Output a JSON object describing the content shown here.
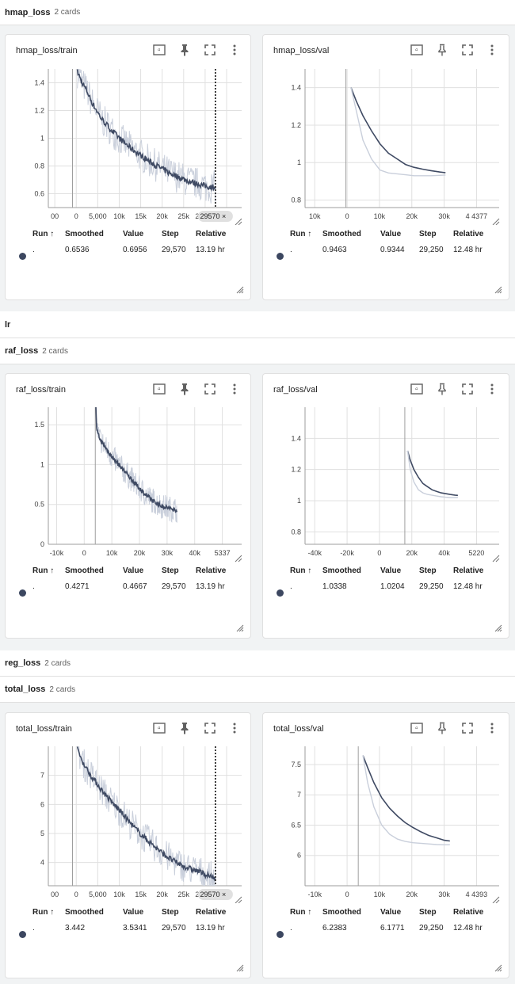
{
  "colors": {
    "smoothed": "#3f4a63",
    "raw": "#c9cfdb",
    "grid": "#e0e0e0",
    "axis": "#9e9e9e",
    "dot": "#3c4760"
  },
  "table_headers": {
    "run": "Run ↑",
    "smoothed": "Smoothed",
    "value": "Value",
    "step": "Step",
    "relative": "Relative"
  },
  "groups": [
    {
      "name": "hmap_loss",
      "count": "2 cards"
    },
    {
      "name": "lr",
      "count": ""
    },
    {
      "name": "raf_loss",
      "count": "2 cards"
    },
    {
      "name": "reg_loss",
      "count": "2 cards"
    },
    {
      "name": "total_loss",
      "count": "2 cards"
    }
  ],
  "cards": [
    {
      "title": "hmap_loss/train",
      "row": {
        "run": ".",
        "smoothed": "0.6536",
        "value": "0.6956",
        "step": "29,570",
        "relative": "13.19 hr"
      },
      "cursor_label": "29570",
      "chart_data": {
        "type": "line",
        "title": "hmap_loss/train",
        "xlabel": "",
        "ylabel": "",
        "xlim": [
          -5000,
          35000
        ],
        "ylim": [
          0.5,
          1.5
        ],
        "x_ticks": [
          "00",
          "0",
          "5,000",
          "10k",
          "15k",
          "20k",
          "25k",
          "29570",
          "3"
        ],
        "y_ticks": [
          0.6,
          0.8,
          1,
          1.2,
          1.4
        ],
        "y_tick_labels": [
          "0.6",
          "0.8",
          "1",
          "1.2",
          "1.4"
        ],
        "cursor_x": 29570,
        "raw_noise": 0.12,
        "series": [
          {
            "x": [
              1000,
              2000,
              3000,
              4000,
              5000,
              6000,
              8000,
              10000,
              12000,
              14000,
              16000,
              18000,
              20000,
              22000,
              24000,
              26000,
              28000,
              29570
            ],
            "y": [
              1.48,
              1.4,
              1.34,
              1.26,
              1.2,
              1.14,
              1.06,
              0.99,
              0.93,
              0.88,
              0.83,
              0.79,
              0.75,
              0.72,
              0.69,
              0.67,
              0.65,
              0.65
            ]
          }
        ]
      }
    },
    {
      "title": "hmap_loss/val",
      "row": {
        "run": ".",
        "smoothed": "0.9463",
        "value": "0.9344",
        "step": "29,250",
        "relative": "12.48 hr"
      },
      "cursor_label": "",
      "chart_data": {
        "type": "line",
        "title": "hmap_loss/val",
        "xlabel": "",
        "ylabel": "",
        "xlim": [
          -12000,
          45000
        ],
        "ylim": [
          0.76,
          1.5
        ],
        "x_ticks": [
          "10k",
          "0",
          "10k",
          "20k",
          "30k",
          "4 4377"
        ],
        "y_ticks": [
          0.8,
          1,
          1.2,
          1.4
        ],
        "y_tick_labels": [
          "0.8",
          "1",
          "1.2",
          "1.4"
        ],
        "series": [
          {
            "x": [
              1500,
              3000,
              5000,
              7500,
              10000,
              12500,
              15000,
              17500,
              20000,
              22500,
              25000,
              27500,
              29250
            ],
            "y": [
              1.4,
              1.33,
              1.25,
              1.17,
              1.1,
              1.05,
              1.02,
              0.99,
              0.975,
              0.965,
              0.957,
              0.95,
              0.946
            ]
          },
          {
            "x": [
              1500,
              3000,
              5000,
              7500,
              10000,
              12500,
              15000,
              17500,
              20000,
              22500,
              25000,
              27500,
              29250
            ],
            "y": [
              1.4,
              1.28,
              1.12,
              1.02,
              0.96,
              0.945,
              0.94,
              0.935,
              0.93,
              0.93,
              0.93,
              0.932,
              0.934
            ]
          }
        ]
      }
    },
    {
      "title": "raf_loss/train",
      "row": {
        "run": ".",
        "smoothed": "0.4271",
        "value": "0.4667",
        "step": "29,570",
        "relative": "13.19 hr"
      },
      "cursor_label": "",
      "chart_data": {
        "type": "line",
        "title": "raf_loss/train",
        "xlabel": "",
        "ylabel": "",
        "xlim": [
          -17000,
          53000
        ],
        "ylim": [
          0,
          1.72
        ],
        "x_ticks": [
          "-10k",
          "0",
          "10k",
          "20k",
          "30k",
          "40k",
          "5337"
        ],
        "y_ticks": [
          0,
          0.5,
          1,
          1.5
        ],
        "y_tick_labels": [
          "0",
          "0.5",
          "1",
          "1.5"
        ],
        "raw_noise": 0.16,
        "series": [
          {
            "x": [
              200,
              500,
              1000,
              2000,
              3000,
              4000,
              6000,
              8000,
              10000,
              12000,
              14000,
              16000,
              18000,
              20000,
              22000,
              24000,
              26000,
              28000,
              29570
            ],
            "y": [
              1.72,
              1.45,
              1.38,
              1.3,
              1.25,
              1.2,
              1.1,
              1.02,
              0.94,
              0.86,
              0.78,
              0.7,
              0.63,
              0.57,
              0.52,
              0.48,
              0.46,
              0.44,
              0.43
            ]
          }
        ]
      }
    },
    {
      "title": "raf_loss/val",
      "row": {
        "run": ".",
        "smoothed": "1.0338",
        "value": "1.0204",
        "step": "29,250",
        "relative": "12.48 hr"
      },
      "cursor_label": "",
      "chart_data": {
        "type": "line",
        "title": "raf_loss/val",
        "xlabel": "",
        "ylabel": "",
        "xlim": [
          -55000,
          52000
        ],
        "ylim": [
          0.72,
          1.6
        ],
        "x_ticks": [
          "-40k",
          "-20k",
          "0",
          "20k",
          "40k",
          "5220"
        ],
        "y_ticks": [
          0.8,
          1,
          1.2,
          1.4
        ],
        "y_tick_labels": [
          "0.8",
          "1",
          "1.2",
          "1.4"
        ],
        "series": [
          {
            "x": [
              1500,
              3000,
              5000,
              7500,
              10000,
              12500,
              15000,
              17500,
              20000,
              22500,
              25000,
              27500,
              29250
            ],
            "y": [
              1.32,
              1.26,
              1.2,
              1.15,
              1.11,
              1.09,
              1.07,
              1.06,
              1.05,
              1.045,
              1.04,
              1.036,
              1.034
            ]
          },
          {
            "x": [
              1500,
              3000,
              5000,
              7500,
              10000,
              12500,
              15000,
              17500,
              20000,
              22500,
              25000,
              27500,
              29250
            ],
            "y": [
              1.32,
              1.2,
              1.12,
              1.07,
              1.05,
              1.04,
              1.035,
              1.03,
              1.025,
              1.022,
              1.02,
              1.02,
              1.02
            ]
          }
        ]
      }
    },
    {
      "title": "total_loss/train",
      "row": {
        "run": ".",
        "smoothed": "3.442",
        "value": "3.5341",
        "step": "29,570",
        "relative": "13.19 hr"
      },
      "cursor_label": "29570",
      "chart_data": {
        "type": "line",
        "title": "total_loss/train",
        "xlabel": "",
        "ylabel": "",
        "xlim": [
          -5000,
          35000
        ],
        "ylim": [
          3.2,
          8.0
        ],
        "x_ticks": [
          "00",
          "0",
          "5,000",
          "10k",
          "15k",
          "20k",
          "25k",
          "29570",
          "3"
        ],
        "y_ticks": [
          4,
          5,
          6,
          7
        ],
        "y_tick_labels": [
          "4",
          "5",
          "6",
          "7"
        ],
        "cursor_x": 29570,
        "raw_noise": 0.55,
        "series": [
          {
            "x": [
              1000,
              2000,
              3000,
              4000,
              6000,
              8000,
              10000,
              12000,
              14000,
              16000,
              18000,
              20000,
              22000,
              24000,
              26000,
              28000,
              29570
            ],
            "y": [
              7.9,
              7.5,
              7.2,
              6.95,
              6.5,
              6.1,
              5.75,
              5.35,
              5.0,
              4.7,
              4.4,
              4.15,
              3.95,
              3.8,
              3.7,
              3.55,
              3.44
            ]
          }
        ]
      }
    },
    {
      "title": "total_loss/val",
      "row": {
        "run": ".",
        "smoothed": "6.2383",
        "value": "6.1771",
        "step": "29,250",
        "relative": "12.48 hr"
      },
      "cursor_label": "",
      "chart_data": {
        "type": "line",
        "title": "total_loss/val",
        "xlabel": "",
        "ylabel": "",
        "xlim": [
          -17000,
          45000
        ],
        "ylim": [
          5.5,
          7.8
        ],
        "x_ticks": [
          "-10k",
          "0",
          "10k",
          "20k",
          "30k",
          "4 4393"
        ],
        "y_ticks": [
          6,
          6.5,
          7,
          7.5
        ],
        "y_tick_labels": [
          "6",
          "6.5",
          "7",
          "7.5"
        ],
        "series": [
          {
            "x": [
              1500,
              3000,
              5000,
              7500,
              10000,
              12500,
              15000,
              17500,
              20000,
              22500,
              25000,
              27500,
              29250
            ],
            "y": [
              7.65,
              7.45,
              7.2,
              6.95,
              6.78,
              6.65,
              6.54,
              6.46,
              6.39,
              6.33,
              6.29,
              6.25,
              6.238
            ]
          },
          {
            "x": [
              1500,
              3000,
              5000,
              7500,
              10000,
              12500,
              15000,
              17500,
              20000,
              22500,
              25000,
              27500,
              29250
            ],
            "y": [
              7.65,
              7.2,
              6.8,
              6.5,
              6.35,
              6.27,
              6.23,
              6.21,
              6.2,
              6.19,
              6.18,
              6.175,
              6.177
            ]
          }
        ]
      }
    }
  ]
}
